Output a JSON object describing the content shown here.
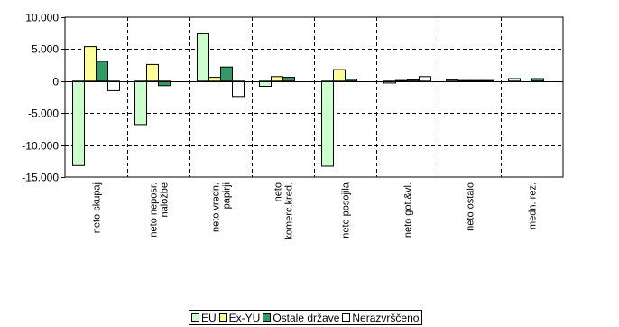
{
  "chart_data": {
    "type": "bar",
    "categories": [
      [
        "neto skupaj"
      ],
      [
        "neto neposr.",
        "naložbe"
      ],
      [
        "neto vredn.",
        "papirji"
      ],
      [
        "neto",
        "komerc.kred."
      ],
      [
        "neto posojila"
      ],
      [
        "neto got.&vl."
      ],
      [
        "neto ostalo"
      ],
      [
        "medn. rez."
      ]
    ],
    "series": [
      {
        "name": "EU",
        "color": "#ccffcc",
        "values": [
          -13200,
          -6800,
          7400,
          -800,
          -13300,
          -300,
          200,
          400
        ]
      },
      {
        "name": "Ex-YU",
        "color": "#ffff99",
        "values": [
          5400,
          2600,
          600,
          700,
          1800,
          100,
          100,
          0
        ]
      },
      {
        "name": "Ostale države",
        "color": "#339966",
        "values": [
          3100,
          -700,
          2200,
          600,
          300,
          200,
          100,
          400
        ]
      },
      {
        "name": "Nerazvrščeno",
        "color": "#ffffff",
        "values": [
          -1500,
          0,
          -2400,
          0,
          0,
          700,
          100,
          0
        ]
      }
    ],
    "ylim": [
      -15000,
      10000
    ],
    "yticks": [
      10000,
      5000,
      0,
      -5000,
      -10000,
      -15000
    ],
    "ytick_labels": [
      "10.000",
      "5.000",
      "0",
      "-5.000",
      "-10.000",
      "-15.000"
    ],
    "grid": "dashed",
    "legend_position": "bottom"
  }
}
